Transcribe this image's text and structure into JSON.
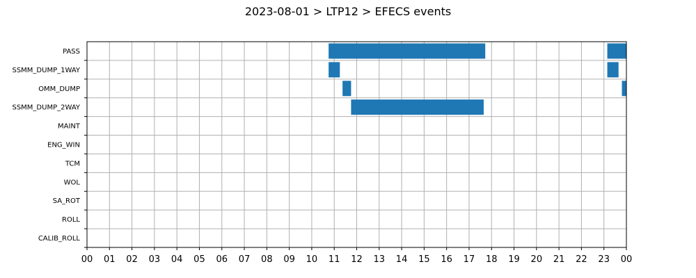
{
  "chart_data": {
    "type": "gantt",
    "title": "2023-08-01 > LTP12 > EFECS events",
    "xlabel": "",
    "ylabel": "",
    "xlim": [
      0,
      24
    ],
    "x_tick_labels": [
      "00",
      "01",
      "02",
      "03",
      "04",
      "05",
      "06",
      "07",
      "08",
      "09",
      "10",
      "11",
      "12",
      "13",
      "14",
      "15",
      "16",
      "17",
      "18",
      "19",
      "20",
      "21",
      "22",
      "23",
      "00"
    ],
    "categories": [
      "PASS",
      "SSMM_DUMP_1WAY",
      "OMM_DUMP",
      "SSMM_DUMP_2WAY",
      "MAINT",
      "ENG_WIN",
      "TCM",
      "WOL",
      "SA_ROT",
      "ROLL",
      "CALIB_ROLL"
    ],
    "grid": true,
    "bar_color": "#1f77b4",
    "events": [
      {
        "category": "PASS",
        "start": 10.75,
        "end": 17.72
      },
      {
        "category": "PASS",
        "start": 23.15,
        "end": 24.0
      },
      {
        "category": "SSMM_DUMP_1WAY",
        "start": 10.75,
        "end": 11.25
      },
      {
        "category": "SSMM_DUMP_1WAY",
        "start": 23.15,
        "end": 23.65
      },
      {
        "category": "OMM_DUMP",
        "start": 11.37,
        "end": 11.75
      },
      {
        "category": "OMM_DUMP",
        "start": 23.8,
        "end": 24.0
      },
      {
        "category": "SSMM_DUMP_2WAY",
        "start": 11.75,
        "end": 17.65
      }
    ]
  }
}
